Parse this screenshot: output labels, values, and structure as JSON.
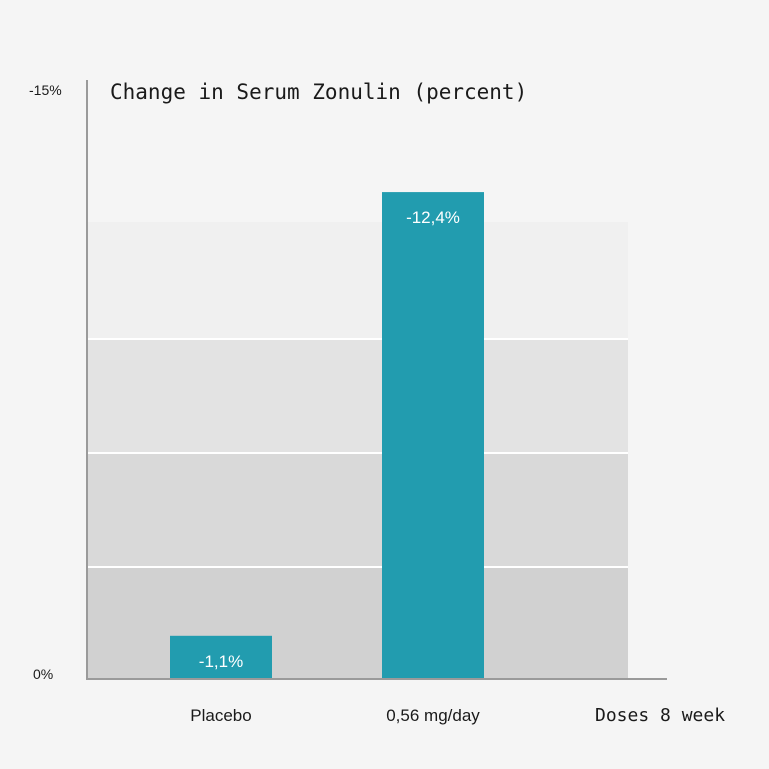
{
  "chart_data": {
    "type": "bar",
    "title": "Change in Serum Zonulin (percent)",
    "xlabel": "Doses 8 week",
    "ylabel": "",
    "y_axis_direction": "inverted (negative values plotted upward)",
    "ylim": [
      0,
      -15
    ],
    "y_ticks": [
      "-15%",
      "0%"
    ],
    "categories": [
      "Placebo",
      "0,56 mg/day"
    ],
    "values": [
      -1.1,
      -12.4
    ],
    "data_labels": [
      "-1,1%",
      "-12,4%"
    ],
    "background_bands": true,
    "grid": false,
    "legend": "none"
  },
  "colors": {
    "background": "#f5f5f5",
    "bar": "#229caf",
    "axis": "#9a9a9a",
    "text": "#1a1a1a",
    "data_label": "#ffffff",
    "bands": [
      "#f0f0f0",
      "#e3e3e3",
      "#d9d9d9",
      "#d1d1d1"
    ]
  }
}
